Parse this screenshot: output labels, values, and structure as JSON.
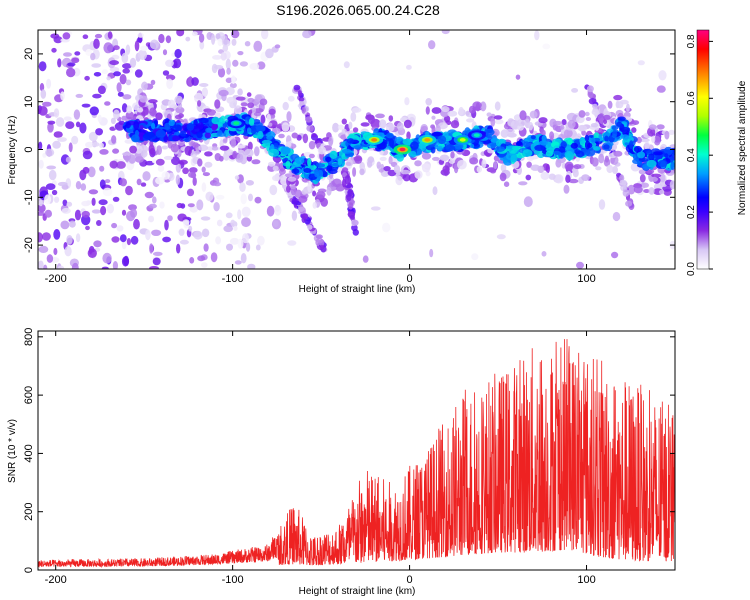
{
  "title": "S196.2026.065.00.24.C28",
  "chart_data": [
    {
      "type": "heatmap",
      "name": "spectrogram",
      "xlabel": "Height of straight line (km)",
      "ylabel": "Frequency (Hz)",
      "xlim": [
        -210,
        150
      ],
      "ylim": [
        -25,
        25
      ],
      "xticks": [
        -200,
        -100,
        0,
        100
      ],
      "yticks": [
        -20,
        -10,
        0,
        10,
        20
      ],
      "colorbar": {
        "label": "Normalized spectral amplitude",
        "range": [
          0.0,
          0.84
        ],
        "ticks": [
          "0.0",
          "0.2",
          "0.4",
          "0.6",
          "0.8"
        ],
        "tick_values": [
          0.0,
          0.2,
          0.4,
          0.6,
          0.8
        ],
        "colors": [
          "#ffffff",
          "#d8c8f5",
          "#8a2be2",
          "#3a00ff",
          "#0000ff",
          "#00a0ff",
          "#00ffd0",
          "#00ff40",
          "#b0ff00",
          "#ffff00",
          "#ff8000",
          "#ff0000",
          "#ff0080"
        ]
      },
      "ridge": [
        {
          "x": -160,
          "f": 4.0
        },
        {
          "x": -130,
          "f": 4.0
        },
        {
          "x": -110,
          "f": 4.5
        },
        {
          "x": -95,
          "f": 5.5
        },
        {
          "x": -85,
          "f": 4.0
        },
        {
          "x": -75,
          "f": 0.0
        },
        {
          "x": -65,
          "f": -3.0
        },
        {
          "x": -52,
          "f": -5.0
        },
        {
          "x": -40,
          "f": -2.0
        },
        {
          "x": -30,
          "f": 2.0
        },
        {
          "x": -15,
          "f": 2.0
        },
        {
          "x": -5,
          "f": 0.0
        },
        {
          "x": 10,
          "f": 1.5
        },
        {
          "x": 30,
          "f": 2.0
        },
        {
          "x": 45,
          "f": 3.0
        },
        {
          "x": 55,
          "f": -1.0
        },
        {
          "x": 70,
          "f": 1.0
        },
        {
          "x": 90,
          "f": 0.0
        },
        {
          "x": 110,
          "f": 1.5
        },
        {
          "x": 120,
          "f": 5.0
        },
        {
          "x": 130,
          "f": -2.0
        },
        {
          "x": 150,
          "f": -2.0
        }
      ],
      "branches": [
        [
          {
            "x": -65,
            "f": 14.0
          },
          {
            "x": -45,
            "f": -5.0
          }
        ],
        [
          {
            "x": -72,
            "f": -6.0
          },
          {
            "x": -48,
            "f": -21.0
          }
        ],
        [
          {
            "x": -36,
            "f": -5.0
          },
          {
            "x": -30,
            "f": -18.0
          }
        ],
        [
          {
            "x": 100,
            "f": 14.0
          },
          {
            "x": 125,
            "f": -12.0
          }
        ]
      ],
      "peaks": [
        {
          "x": -4,
          "f": 0.0,
          "v": 0.82
        },
        {
          "x": -20,
          "f": 2.0,
          "v": 0.7
        },
        {
          "x": 10,
          "f": 2.0,
          "v": 0.68
        },
        {
          "x": 30,
          "f": 2.0,
          "v": 0.6
        },
        {
          "x": -98,
          "f": 5.5,
          "v": 0.45
        },
        {
          "x": 38,
          "f": 3.0,
          "v": 0.42
        }
      ]
    },
    {
      "type": "line",
      "name": "snr",
      "xlabel": "Height of straight line (km)",
      "ylabel": "SNR (10 * v/v)",
      "xlim": [
        -210,
        150
      ],
      "ylim": [
        0,
        820
      ],
      "xticks": [
        -200,
        -100,
        0,
        100
      ],
      "yticks": [
        0,
        200,
        400,
        600,
        800
      ],
      "color": "#ee2222",
      "envelope": [
        {
          "x": -210,
          "max": 35,
          "min": 5
        },
        {
          "x": -150,
          "max": 40,
          "min": 5
        },
        {
          "x": -110,
          "max": 55,
          "min": 10
        },
        {
          "x": -80,
          "max": 90,
          "min": 15
        },
        {
          "x": -65,
          "max": 240,
          "min": 20
        },
        {
          "x": -55,
          "max": 120,
          "min": 15
        },
        {
          "x": -40,
          "max": 160,
          "min": 20
        },
        {
          "x": -25,
          "max": 360,
          "min": 25
        },
        {
          "x": -10,
          "max": 300,
          "min": 30
        },
        {
          "x": 10,
          "max": 420,
          "min": 40
        },
        {
          "x": 30,
          "max": 620,
          "min": 50
        },
        {
          "x": 50,
          "max": 680,
          "min": 60
        },
        {
          "x": 70,
          "max": 780,
          "min": 60
        },
        {
          "x": 90,
          "max": 800,
          "min": 70
        },
        {
          "x": 110,
          "max": 720,
          "min": 40
        },
        {
          "x": 130,
          "max": 640,
          "min": 30
        },
        {
          "x": 150,
          "max": 560,
          "min": 30
        }
      ]
    }
  ]
}
